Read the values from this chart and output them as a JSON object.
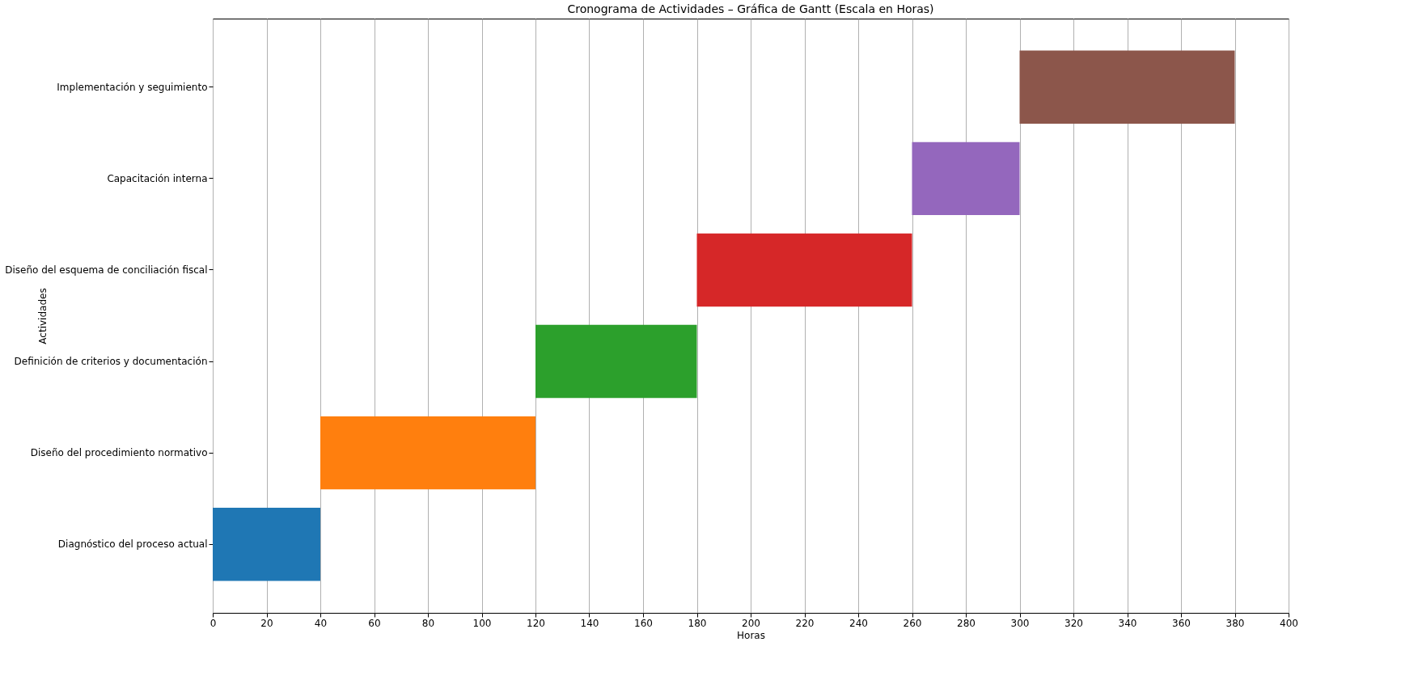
{
  "chart_data": {
    "type": "bar",
    "orientation": "horizontal",
    "title": "Cronograma de Actividades – Gráfica de Gantt (Escala en Horas)",
    "xlabel": "Horas",
    "ylabel": "Actividades",
    "categories": [
      "Implementación y seguimiento",
      "Capacitación interna",
      "Diseño del esquema de conciliación fiscal",
      "Definición de criterios y documentación",
      "Diseño del procedimiento normativo",
      "Diagnóstico del proceso actual"
    ],
    "base": [
      300,
      260,
      180,
      120,
      40,
      0
    ],
    "values": [
      80,
      40,
      80,
      60,
      80,
      40
    ],
    "colors": [
      "#8c564b",
      "#9467bd",
      "#d62728",
      "#2ca02c",
      "#ff7f0e",
      "#1f77b4"
    ],
    "xlim": [
      0,
      400
    ],
    "xticks": [
      0,
      20,
      40,
      60,
      80,
      100,
      120,
      140,
      160,
      180,
      200,
      220,
      240,
      260,
      280,
      300,
      320,
      340,
      360,
      380,
      400
    ],
    "grid": "x"
  }
}
